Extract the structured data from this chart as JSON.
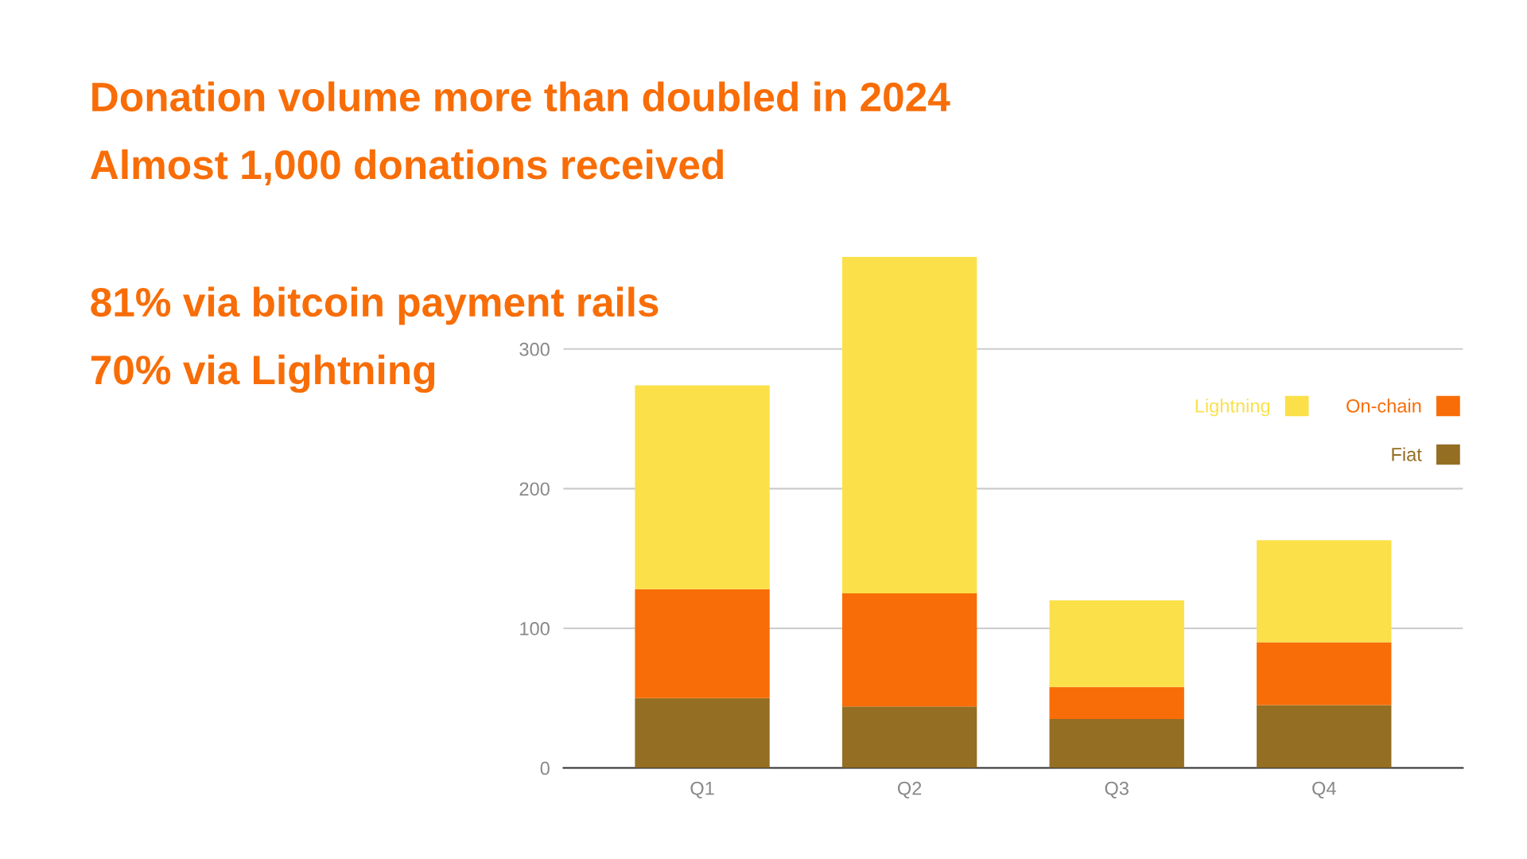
{
  "chart_data": {
    "type": "bar",
    "title": "Donation volume more than doubled in 2024",
    "subtitle": "Almost 1,000 donations received",
    "annotations": [
      "81% via bitcoin payment rails",
      "70% via Lightning"
    ],
    "categories": [
      "Q1",
      "Q2",
      "Q3",
      "Q4"
    ],
    "series": [
      {
        "name": "Fiat",
        "color": "#946e23",
        "values": [
          50,
          44,
          35,
          45
        ]
      },
      {
        "name": "On-chain",
        "color": "#f86d07",
        "values": [
          78,
          81,
          23,
          45
        ]
      },
      {
        "name": "Lightning",
        "color": "#fbe04a",
        "values": [
          146,
          241,
          62,
          73
        ]
      }
    ],
    "stacked": true,
    "ylim": [
      0,
      366
    ],
    "yticks": [
      0,
      100,
      200,
      300
    ],
    "grid": "y",
    "legend": "top right"
  }
}
